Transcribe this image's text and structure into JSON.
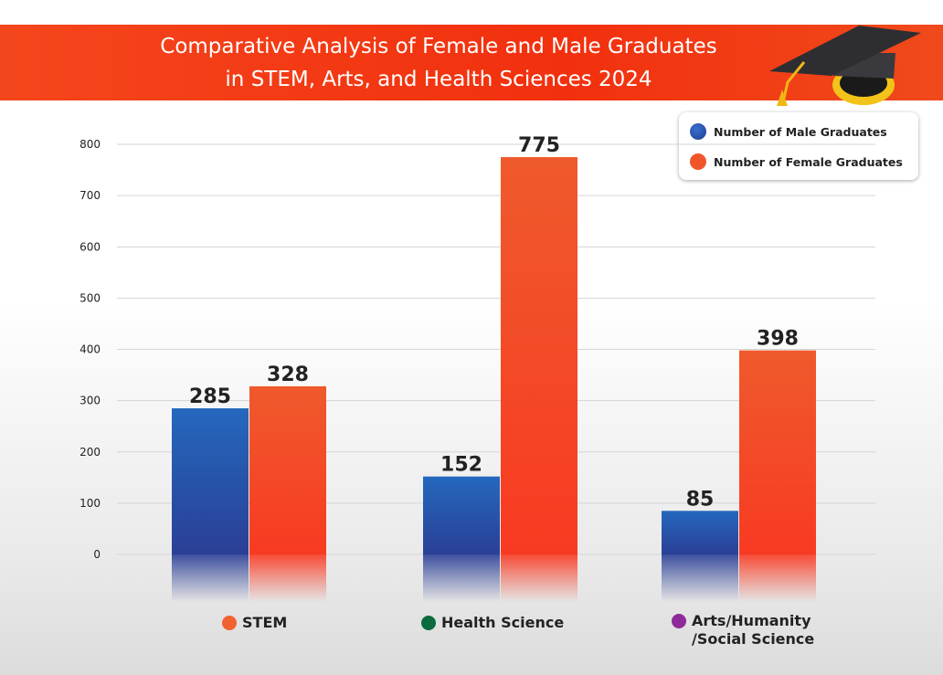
{
  "header": {
    "title_line1": "Comparative Analysis of Female and Male Graduates",
    "title_line2": "in STEM, Arts, and Health Sciences 2024"
  },
  "chart_data": {
    "type": "bar",
    "title": "Comparative Analysis of Female and Male Graduates in STEM, Arts, and Health Sciences 2024",
    "categories": [
      "STEM",
      "Health Science",
      "Arts/Humanity /Social Science"
    ],
    "category_labels": [
      [
        "STEM"
      ],
      [
        "Health Science"
      ],
      [
        "Arts/Humanity",
        "/Social Science"
      ]
    ],
    "category_colors": [
      "#f0622e",
      "#0a6b3c",
      "#8e2a9a"
    ],
    "series": [
      {
        "name": "Number of Male Graduates",
        "values": [
          285,
          152,
          85
        ],
        "color": "#2a5fb8"
      },
      {
        "name": "Number of Female Graduates",
        "values": [
          328,
          775,
          398
        ],
        "color": "#f25a2a"
      }
    ],
    "xlabel": "",
    "ylabel": "",
    "ylim": [
      0,
      800
    ],
    "yticks": [
      0,
      100,
      200,
      300,
      400,
      500,
      600,
      700,
      800
    ],
    "grid": true,
    "legend_position": "top-right"
  }
}
